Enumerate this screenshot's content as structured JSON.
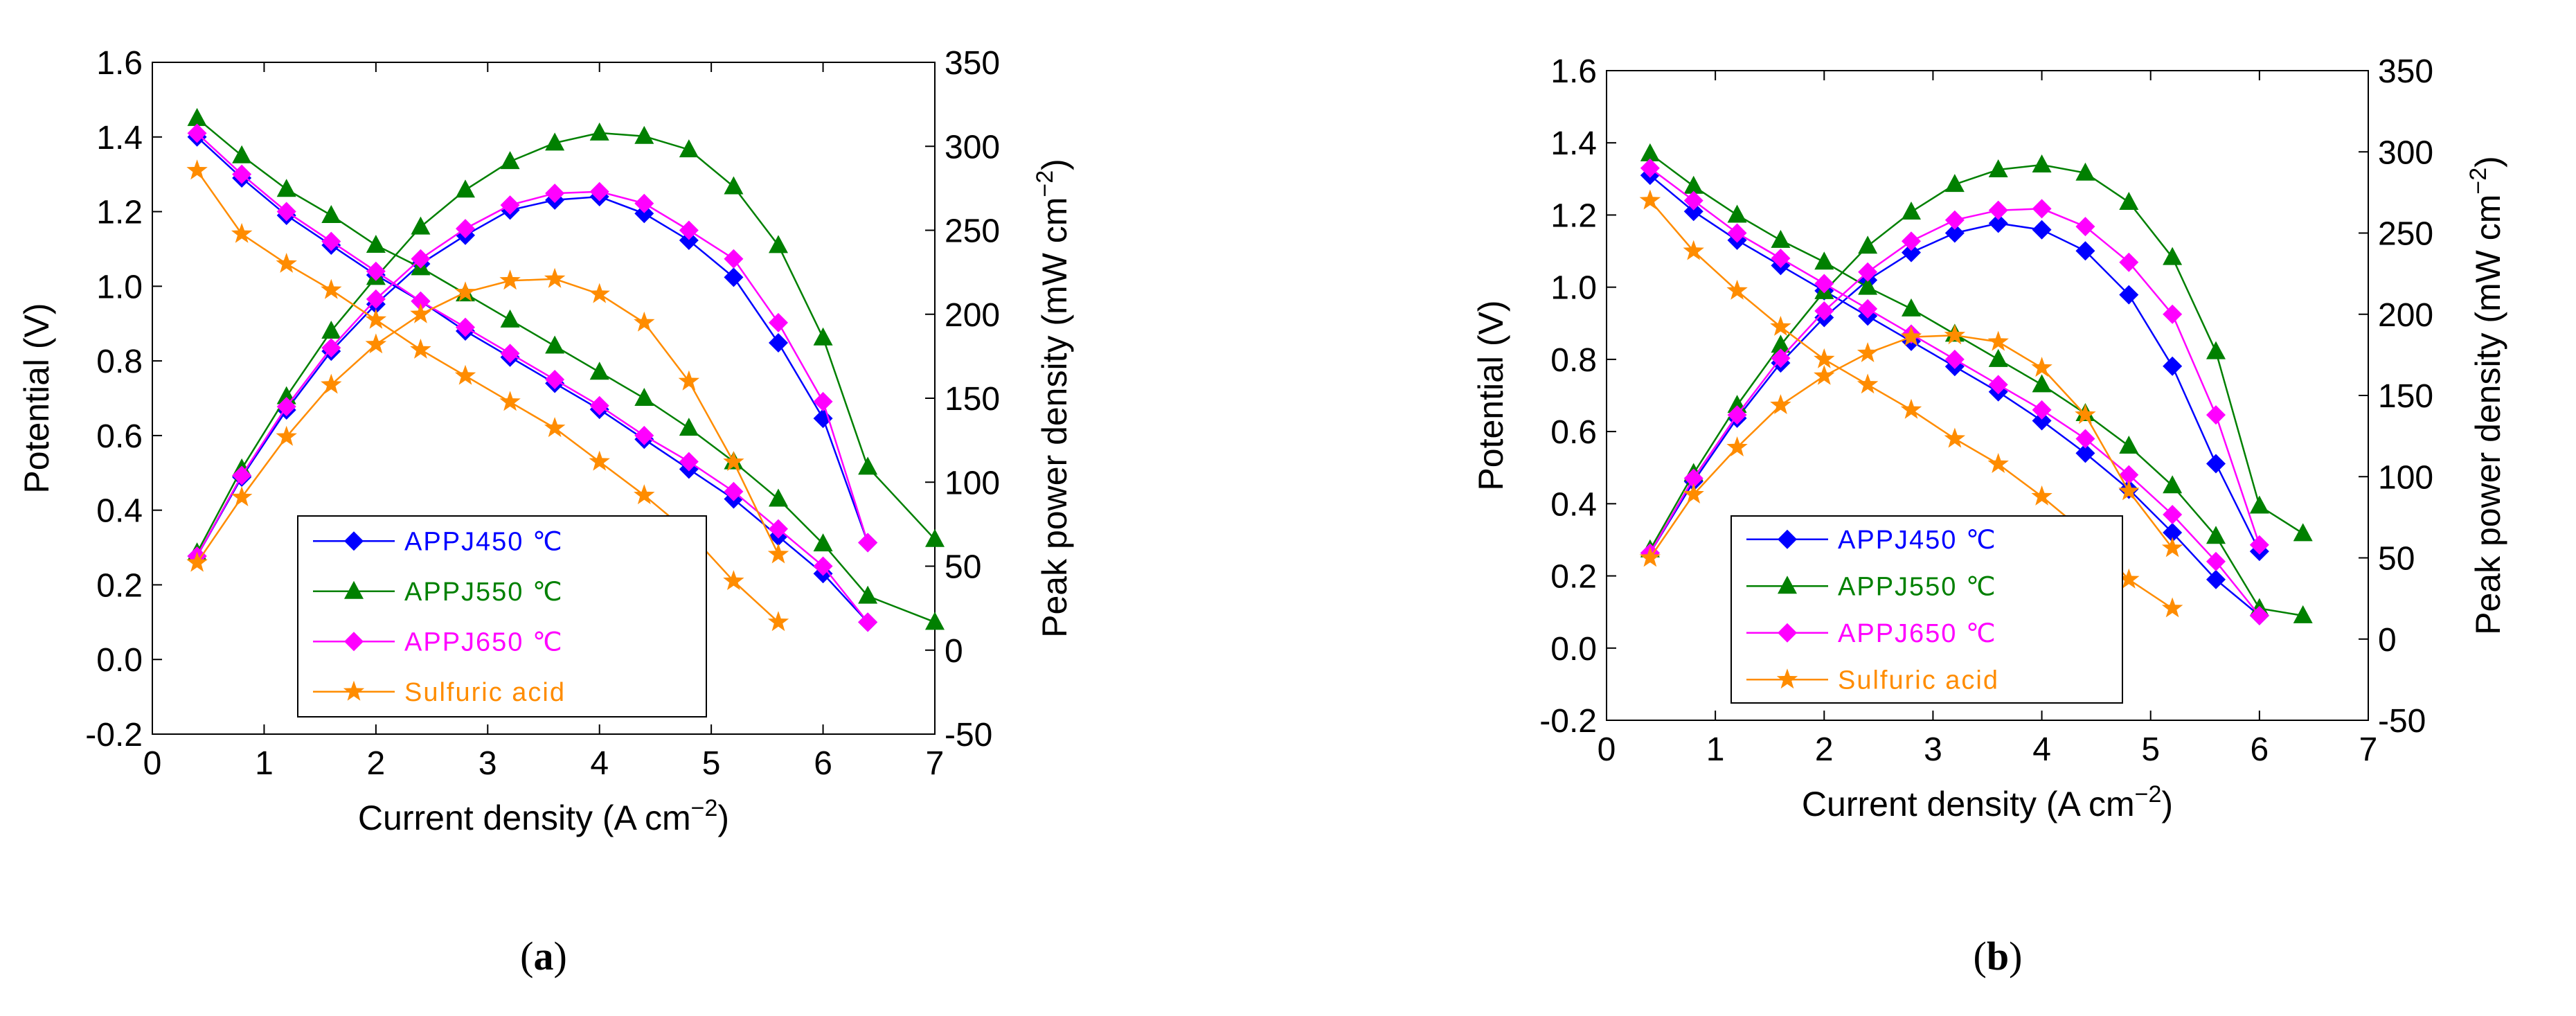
{
  "chart_data": [
    {
      "type": "line",
      "caption": "(a)",
      "caption_letter": "a",
      "xlabel": "Current density (A cm",
      "xlabel_sup": "−2",
      "xlabel_close": ")",
      "ylabel_left": "Potential (V)",
      "ylabel_right": "Peak power density (mW cm",
      "ylabel_right_sup": "−2",
      "ylabel_right_close": ")",
      "xlim": [
        0,
        7
      ],
      "ylim_left": [
        -0.2,
        1.6
      ],
      "ylim_right": [
        -50,
        350
      ],
      "xticks": [
        "0",
        "1",
        "2",
        "3",
        "4",
        "5",
        "6",
        "7"
      ],
      "yticks_left": [
        "-0.2",
        "0.0",
        "0.2",
        "0.4",
        "0.6",
        "0.8",
        "1.0",
        "1.2",
        "1.4",
        "1.6"
      ],
      "yticks_right": [
        "-50",
        "0",
        "50",
        "100",
        "150",
        "200",
        "250",
        "300",
        "350"
      ],
      "legend_position": "bottom-left",
      "series": [
        {
          "name": "APPJ450 ℃",
          "color": "#0000ff",
          "marker": "diamond",
          "x": [
            0.4,
            0.8,
            1.2,
            1.6,
            2.0,
            2.4,
            2.8,
            3.2,
            3.6,
            4.0,
            4.4,
            4.8,
            5.2,
            5.6,
            6.0,
            6.4
          ],
          "potential": [
            1.4,
            1.29,
            1.19,
            1.11,
            1.03,
            0.96,
            0.88,
            0.81,
            0.74,
            0.67,
            0.59,
            0.51,
            0.43,
            0.33,
            0.23,
            0.1
          ],
          "power": [
            56,
            103,
            143,
            178,
            206,
            230,
            247,
            262,
            268,
            270,
            260,
            244,
            222,
            183,
            138,
            64
          ]
        },
        {
          "name": "APPJ550 ℃",
          "color": "#008000",
          "marker": "triangle",
          "x": [
            0.4,
            0.8,
            1.2,
            1.6,
            2.0,
            2.4,
            2.8,
            3.2,
            3.6,
            4.0,
            4.4,
            4.8,
            5.2,
            5.6,
            6.0,
            6.4,
            7.0
          ],
          "potential": [
            1.45,
            1.35,
            1.26,
            1.19,
            1.11,
            1.05,
            0.98,
            0.91,
            0.84,
            0.77,
            0.7,
            0.62,
            0.53,
            0.43,
            0.31,
            0.17,
            0.1
          ],
          "power": [
            58,
            108,
            151,
            190,
            222,
            252,
            274,
            291,
            302,
            308,
            306,
            298,
            276,
            241,
            186,
            109,
            66
          ]
        },
        {
          "name": "APPJ650 ℃",
          "color": "#ff00ff",
          "marker": "diamond",
          "x": [
            0.4,
            0.8,
            1.2,
            1.6,
            2.0,
            2.4,
            2.8,
            3.2,
            3.6,
            4.0,
            4.4,
            4.8,
            5.2,
            5.6,
            6.0,
            6.4
          ],
          "potential": [
            1.41,
            1.3,
            1.2,
            1.12,
            1.04,
            0.96,
            0.89,
            0.82,
            0.75,
            0.68,
            0.6,
            0.53,
            0.45,
            0.35,
            0.25,
            0.1
          ],
          "power": [
            56,
            104,
            145,
            180,
            209,
            233,
            251,
            265,
            272,
            273,
            266,
            250,
            233,
            195,
            148,
            64
          ]
        },
        {
          "name": "Sulfuric acid",
          "color": "#ff8c00",
          "marker": "star",
          "x": [
            0.4,
            0.8,
            1.2,
            1.6,
            2.0,
            2.4,
            2.8,
            3.2,
            3.6,
            4.0,
            4.4,
            4.8,
            5.2,
            5.6
          ],
          "potential": [
            1.31,
            1.14,
            1.06,
            0.99,
            0.91,
            0.83,
            0.76,
            0.69,
            0.62,
            0.53,
            0.44,
            0.34,
            0.21,
            0.1
          ],
          "power": [
            52,
            91,
            127,
            158,
            182,
            200,
            213,
            220,
            221,
            212,
            195,
            160,
            112,
            57
          ]
        }
      ]
    },
    {
      "type": "line",
      "caption": "(b)",
      "caption_letter": "b",
      "xlabel": "Current density (A cm",
      "xlabel_sup": "−2",
      "xlabel_close": ")",
      "ylabel_left": "Potential (V)",
      "ylabel_right": "Peak power density (mW cm",
      "ylabel_right_sup": "−2",
      "ylabel_right_close": ")",
      "xlim": [
        0,
        7
      ],
      "ylim_left": [
        -0.2,
        1.6
      ],
      "ylim_right": [
        -50,
        350
      ],
      "xticks": [
        "0",
        "1",
        "2",
        "3",
        "4",
        "5",
        "6",
        "7"
      ],
      "yticks_left": [
        "-0.2",
        "0.0",
        "0.2",
        "0.4",
        "0.6",
        "0.8",
        "1.0",
        "1.2",
        "1.4",
        "1.6"
      ],
      "yticks_right": [
        "-50",
        "0",
        "50",
        "100",
        "150",
        "200",
        "250",
        "300",
        "350"
      ],
      "legend_position": "bottom-left",
      "series": [
        {
          "name": "APPJ450 ℃",
          "color": "#0000ff",
          "marker": "diamond",
          "x": [
            0.4,
            0.8,
            1.2,
            1.6,
            2.0,
            2.4,
            2.8,
            3.2,
            3.6,
            4.0,
            4.4,
            4.8,
            5.2,
            5.6,
            6.0
          ],
          "potential": [
            1.31,
            1.21,
            1.13,
            1.06,
            0.99,
            0.92,
            0.85,
            0.78,
            0.71,
            0.63,
            0.54,
            0.44,
            0.32,
            0.19,
            0.09
          ],
          "power": [
            53,
            97,
            136,
            170,
            198,
            221,
            238,
            250,
            256,
            252,
            239,
            212,
            168,
            108,
            54
          ]
        },
        {
          "name": "APPJ550 ℃",
          "color": "#008000",
          "marker": "triangle",
          "x": [
            0.4,
            0.8,
            1.2,
            1.6,
            2.0,
            2.4,
            2.8,
            3.2,
            3.6,
            4.0,
            4.4,
            4.8,
            5.2,
            5.6,
            6.0,
            6.4
          ],
          "potential": [
            1.37,
            1.28,
            1.2,
            1.13,
            1.07,
            1.0,
            0.94,
            0.87,
            0.8,
            0.73,
            0.65,
            0.56,
            0.45,
            0.31,
            0.11,
            0.09
          ],
          "power": [
            55,
            102,
            144,
            181,
            214,
            242,
            263,
            280,
            289,
            292,
            287,
            269,
            235,
            177,
            82,
            65
          ]
        },
        {
          "name": "APPJ650 ℃",
          "color": "#ff00ff",
          "marker": "diamond",
          "x": [
            0.4,
            0.8,
            1.2,
            1.6,
            2.0,
            2.4,
            2.8,
            3.2,
            3.6,
            4.0,
            4.4,
            4.8,
            5.2,
            5.6,
            6.0
          ],
          "potential": [
            1.33,
            1.24,
            1.15,
            1.08,
            1.01,
            0.94,
            0.87,
            0.8,
            0.73,
            0.66,
            0.58,
            0.48,
            0.37,
            0.24,
            0.09
          ],
          "power": [
            53,
            99,
            138,
            173,
            202,
            226,
            245,
            258,
            264,
            265,
            254,
            232,
            200,
            138,
            58
          ]
        },
        {
          "name": "Sulfuric acid",
          "color": "#ff8c00",
          "marker": "star",
          "x": [
            0.4,
            0.8,
            1.2,
            1.6,
            2.0,
            2.4,
            2.8,
            3.2,
            3.6,
            4.0,
            4.4,
            4.8,
            5.2
          ],
          "potential": [
            1.24,
            1.1,
            0.99,
            0.89,
            0.8,
            0.73,
            0.66,
            0.58,
            0.51,
            0.42,
            0.32,
            0.19,
            0.11
          ],
          "power": [
            50,
            89,
            118,
            144,
            162,
            176,
            186,
            187,
            183,
            167,
            138,
            91,
            56
          ]
        }
      ]
    }
  ]
}
